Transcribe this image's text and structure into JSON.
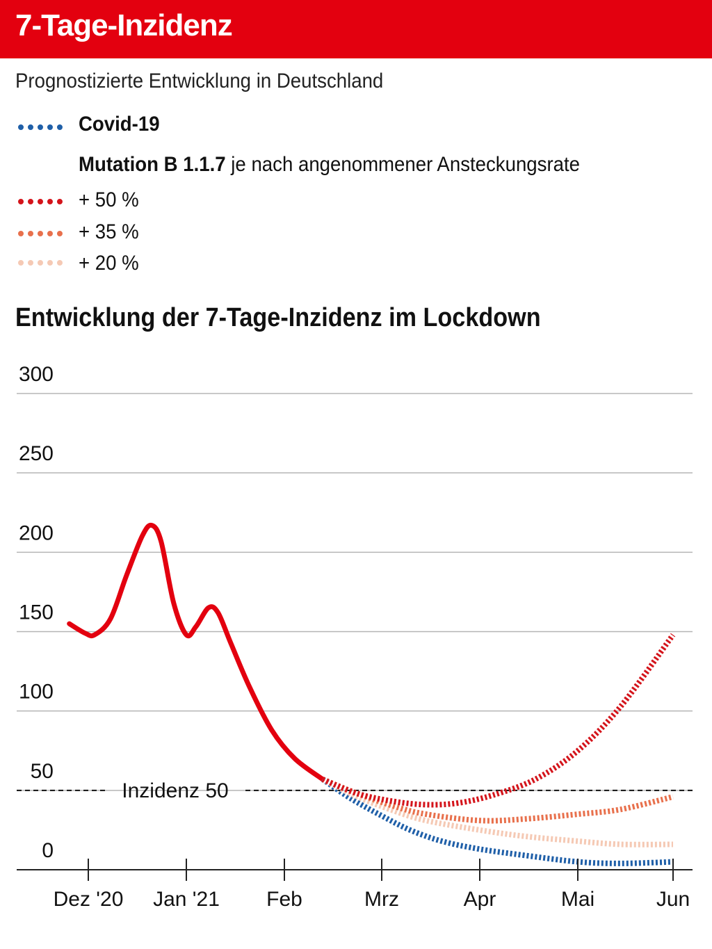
{
  "header": {
    "title": "7-Tage-Inzidenz",
    "bg_color": "#e3000f"
  },
  "subtitle": "Prognostizierte Entwicklung in Deutschland",
  "legend": {
    "covid": {
      "label": "Covid-19",
      "color": "#1f5fa8"
    },
    "mutation_bold": "Mutation B 1.1.7",
    "mutation_rest": " je nach angenommener Ansteckungsrate",
    "items": [
      {
        "label": "+ 50 %",
        "color": "#d4141b"
      },
      {
        "label": "+ 35 %",
        "color": "#e8704c"
      },
      {
        "label": "+ 20 %",
        "color": "#f5c9b4"
      }
    ]
  },
  "chart_title": "Entwicklung der 7-Tage-Inzidenz im Lockdown",
  "chart_data": {
    "type": "line",
    "ylim": [
      0,
      300
    ],
    "yticks": [
      "0",
      "50",
      "100",
      "150",
      "200",
      "250",
      "300"
    ],
    "xticks": [
      "Dez '20",
      "Jan '21",
      "Feb",
      "Mrz",
      "Apr",
      "Mai",
      "Jun"
    ],
    "grid": true,
    "reference_line": {
      "value": 50,
      "label": "Inzidenz 50"
    },
    "series": [
      {
        "style": "solid",
        "color": "#e3000f",
        "points": [
          [
            "2020-11-25",
            155
          ],
          [
            "2020-11-30",
            149
          ],
          [
            "2020-12-03",
            148
          ],
          [
            "2020-12-08",
            158
          ],
          [
            "2020-12-13",
            185
          ],
          [
            "2020-12-18",
            210
          ],
          [
            "2020-12-21",
            217
          ],
          [
            "2020-12-24",
            207
          ],
          [
            "2020-12-28",
            168
          ],
          [
            "2021-01-01",
            148
          ],
          [
            "2021-01-04",
            153
          ],
          [
            "2021-01-08",
            165
          ],
          [
            "2021-01-11",
            162
          ],
          [
            "2021-01-15",
            143
          ],
          [
            "2021-01-21",
            115
          ],
          [
            "2021-01-28",
            88
          ],
          [
            "2021-02-04",
            70
          ],
          [
            "2021-02-12",
            57
          ]
        ]
      },
      {
        "name": "Covid-19",
        "style": "dotted",
        "color": "#1f5fa8",
        "points": [
          [
            "2021-02-12",
            57
          ],
          [
            "2021-02-20",
            45
          ],
          [
            "2021-03-01",
            34
          ],
          [
            "2021-03-10",
            25
          ],
          [
            "2021-03-20",
            18
          ],
          [
            "2021-04-01",
            13
          ],
          [
            "2021-04-15",
            9
          ],
          [
            "2021-05-01",
            5
          ],
          [
            "2021-05-15",
            4
          ],
          [
            "2021-06-01",
            5
          ]
        ]
      },
      {
        "name": "+ 20 %",
        "style": "dotted",
        "color": "#f5c9b4",
        "points": [
          [
            "2021-02-12",
            57
          ],
          [
            "2021-02-22",
            46
          ],
          [
            "2021-03-05",
            37
          ],
          [
            "2021-03-15",
            31
          ],
          [
            "2021-04-01",
            25
          ],
          [
            "2021-04-15",
            21
          ],
          [
            "2021-05-01",
            18
          ],
          [
            "2021-05-15",
            16
          ],
          [
            "2021-06-01",
            16
          ]
        ]
      },
      {
        "name": "+ 35 %",
        "style": "dotted",
        "color": "#e8704c",
        "points": [
          [
            "2021-02-12",
            57
          ],
          [
            "2021-02-22",
            48
          ],
          [
            "2021-03-05",
            40
          ],
          [
            "2021-03-15",
            35
          ],
          [
            "2021-04-01",
            31
          ],
          [
            "2021-04-15",
            32
          ],
          [
            "2021-05-01",
            35
          ],
          [
            "2021-05-15",
            38
          ],
          [
            "2021-06-01",
            46
          ]
        ]
      },
      {
        "name": "+ 50 %",
        "style": "dotted",
        "color": "#d4141b",
        "points": [
          [
            "2021-02-12",
            57
          ],
          [
            "2021-02-22",
            48
          ],
          [
            "2021-03-05",
            43
          ],
          [
            "2021-03-15",
            41
          ],
          [
            "2021-03-25",
            42
          ],
          [
            "2021-04-05",
            47
          ],
          [
            "2021-04-18",
            57
          ],
          [
            "2021-05-01",
            75
          ],
          [
            "2021-05-15",
            103
          ],
          [
            "2021-06-01",
            148
          ]
        ]
      }
    ]
  }
}
